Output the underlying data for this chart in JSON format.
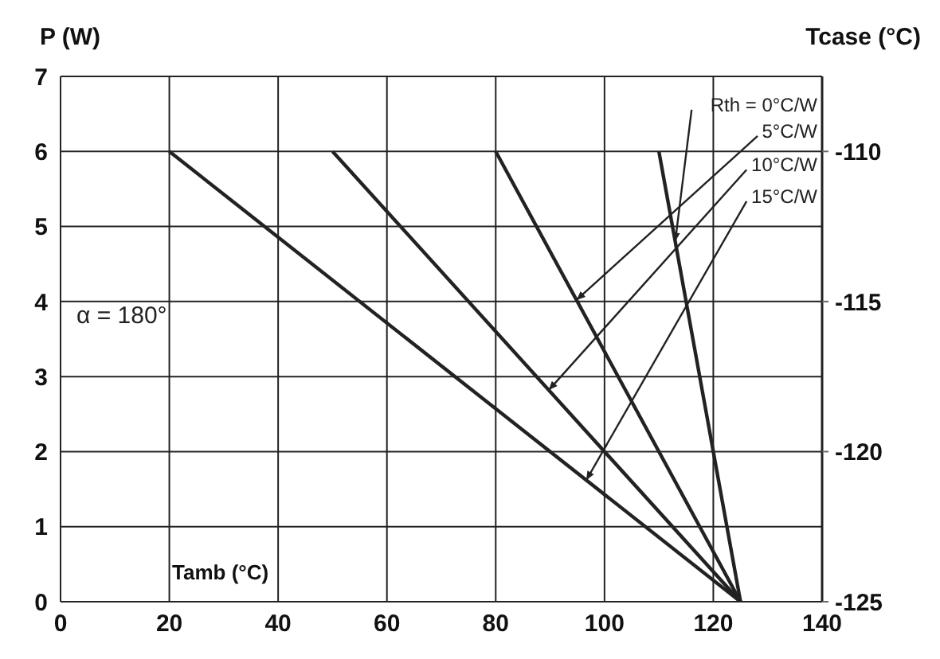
{
  "chart_data": {
    "type": "line",
    "ylabel": "P (W)",
    "y2label": "Tcase (°C)",
    "xlabel": "Tamb (°C)",
    "annotations": [
      "α = 180°"
    ],
    "xlim": [
      0,
      140
    ],
    "xticks": [
      0,
      20,
      40,
      60,
      80,
      100,
      120,
      140
    ],
    "ylim": [
      0,
      7
    ],
    "yticks": [
      0,
      1,
      2,
      3,
      4,
      5,
      6,
      7
    ],
    "y2lim": [
      -125,
      -107.5
    ],
    "y2ticks": [
      -125,
      -120,
      -115,
      -110
    ],
    "grid": true,
    "marker": "none",
    "line_style": "solid",
    "series": [
      {
        "name": "Rth = 0°C/W",
        "color": "#222222",
        "x": [
          110,
          125
        ],
        "values": [
          6,
          0
        ]
      },
      {
        "name": "5°C/W",
        "color": "#222222",
        "x": [
          80,
          125
        ],
        "values": [
          6,
          0
        ]
      },
      {
        "name": "10°C/W",
        "color": "#222222",
        "x": [
          50,
          125
        ],
        "values": [
          6,
          0
        ]
      },
      {
        "name": "15°C/W",
        "color": "#222222",
        "x": [
          20,
          125
        ],
        "values": [
          6,
          0
        ]
      }
    ]
  }
}
